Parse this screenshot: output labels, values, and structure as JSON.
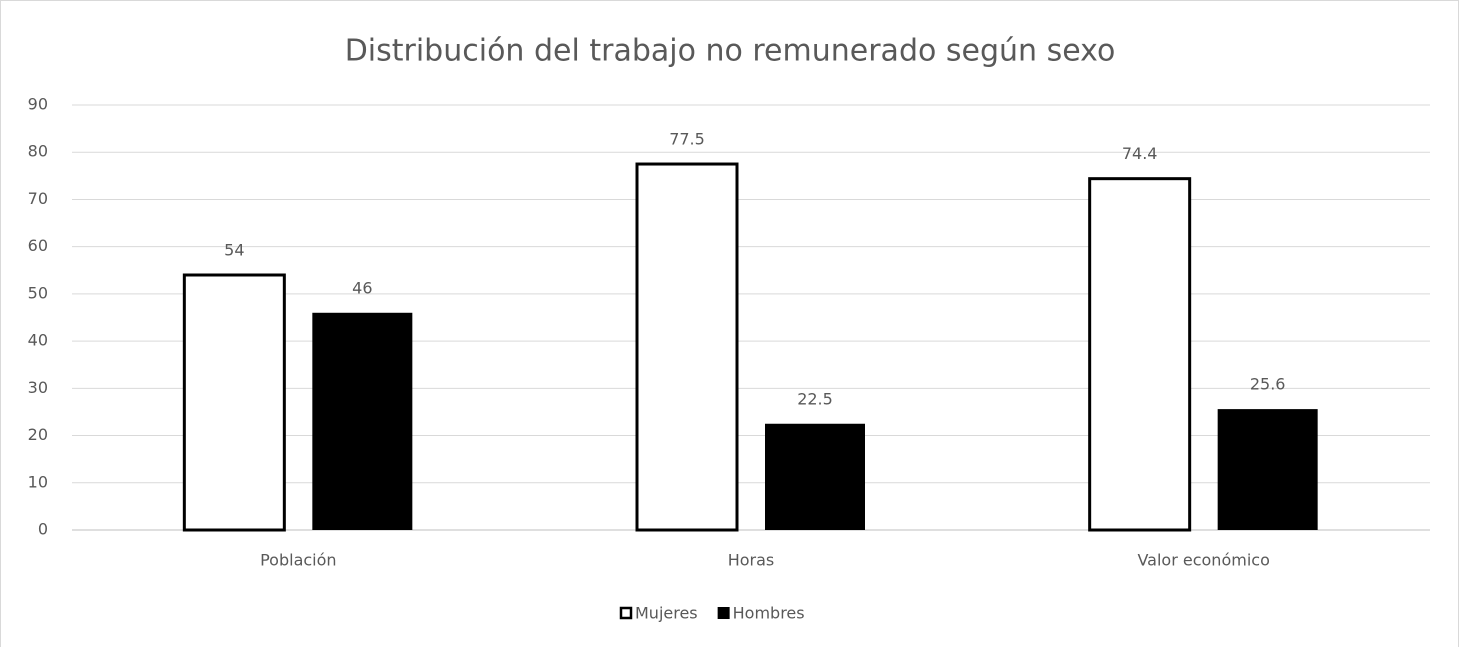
{
  "chart_data": {
    "type": "bar",
    "title": "Distribución del trabajo no remunerado según sexo",
    "categories": [
      "Población",
      "Horas",
      "Valor económico"
    ],
    "series": [
      {
        "name": "Mujeres",
        "color": "#ffffff",
        "edgecolor": "#000000",
        "values": [
          54,
          77.5,
          74.4
        ]
      },
      {
        "name": "Hombres",
        "color": "#000000",
        "values": [
          46,
          22.5,
          25.6
        ]
      }
    ],
    "ylim": [
      0,
      90
    ],
    "yticks": [
      0,
      10,
      20,
      30,
      40,
      50,
      60,
      70,
      80,
      90
    ],
    "grid": true,
    "legend": "bottom"
  }
}
